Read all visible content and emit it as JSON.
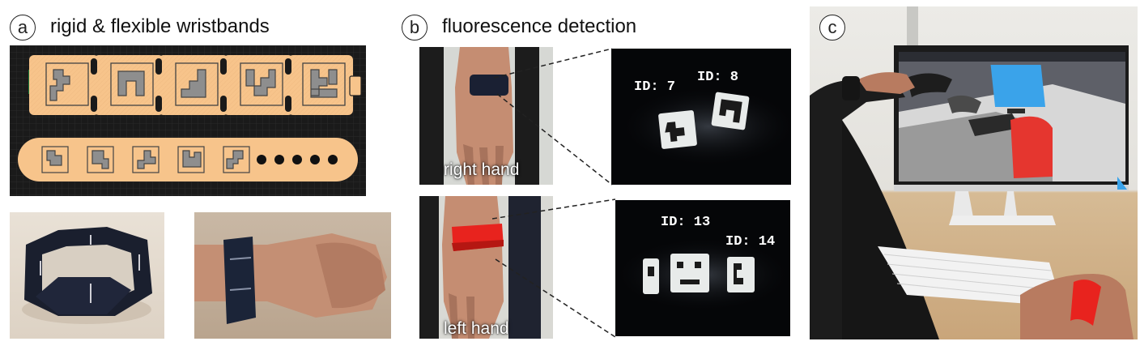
{
  "panel_a": {
    "badge": "a",
    "title": "rigid & flexible wristbands"
  },
  "panel_b": {
    "badge": "b",
    "title": "fluorescence detection",
    "right_hand": {
      "label": "right hand",
      "ids": [
        "ID: 7",
        "ID: 8"
      ]
    },
    "left_hand": {
      "label": "left hand",
      "ids": [
        "ID: 13",
        "ID: 14"
      ]
    }
  },
  "panel_c": {
    "badge": "c"
  },
  "colors": {
    "band_fill": "#F7C48B",
    "panel_bg": "#1A1A1A",
    "marker_gray": "#8E8E8E",
    "red_band": "#E8231E"
  }
}
